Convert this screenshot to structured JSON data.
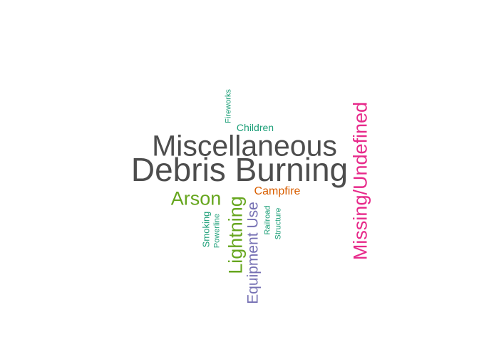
{
  "colors": {
    "gray": "#4d4d4d",
    "green": "#66a61e",
    "teal": "#1b9e77",
    "orange": "#d95f02",
    "purple": "#7570b3",
    "magenta": "#e7298a"
  },
  "words": {
    "debris_burning": "Debris Burning",
    "miscellaneous": "Miscellaneous",
    "missing_undefined": "Missing/Undefined",
    "arson": "Arson",
    "lightning": "Lightning",
    "equipment_use": "Equipment Use",
    "campfire": "Campfire",
    "children": "Children",
    "fireworks": "Fireworks",
    "smoking": "Smoking",
    "powerline": "Powerline",
    "railroad": "Railroad",
    "structure": "Structure"
  }
}
